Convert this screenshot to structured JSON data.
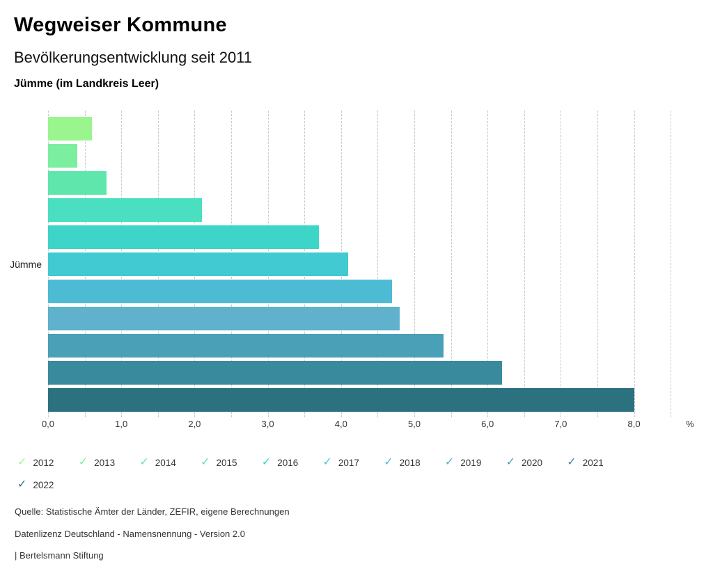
{
  "header": {
    "title": "Wegweiser Kommune",
    "subtitle": "Bevölkerungsentwicklung seit 2011",
    "region": "Jümme (im Landkreis Leer)"
  },
  "chart_data": {
    "type": "bar",
    "orientation": "horizontal",
    "title": "Bevölkerungsentwicklung seit 2011",
    "subtitle": "Jümme (im Landkreis Leer)",
    "group_label": "Jümme",
    "unit_label": "%",
    "categories": [
      "2012",
      "2013",
      "2014",
      "2015",
      "2016",
      "2017",
      "2018",
      "2019",
      "2020",
      "2021",
      "2022"
    ],
    "values": [
      0.6,
      0.4,
      0.8,
      2.1,
      3.7,
      4.1,
      4.7,
      4.8,
      5.4,
      6.2,
      8.0
    ],
    "colors": [
      "#9af58e",
      "#7cee9f",
      "#5fe6ad",
      "#49dfc0",
      "#3dd5c8",
      "#41cad2",
      "#4dbbd3",
      "#5fb1cc",
      "#4aa0b6",
      "#3a8a9e",
      "#2b7180"
    ],
    "xlim": [
      0,
      8.5
    ],
    "gridline_step": 0.5,
    "grid": "dashed-vertical",
    "x_tick_labels": [
      "0,0",
      "1,0",
      "2,0",
      "3,0",
      "4,0",
      "5,0",
      "6,0",
      "7,0",
      "8,0"
    ],
    "x_tick_values": [
      0,
      1,
      2,
      3,
      4,
      5,
      6,
      7,
      8
    ],
    "legend_position": "bottom",
    "legend_icon": "checkmark"
  },
  "footer": {
    "source": "Quelle: Statistische Ämter der Länder, ZEFIR, eigene Berechnungen",
    "license": "Datenlizenz Deutschland - Namensnennung - Version 2.0",
    "attribution": "| Bertelsmann Stiftung"
  }
}
